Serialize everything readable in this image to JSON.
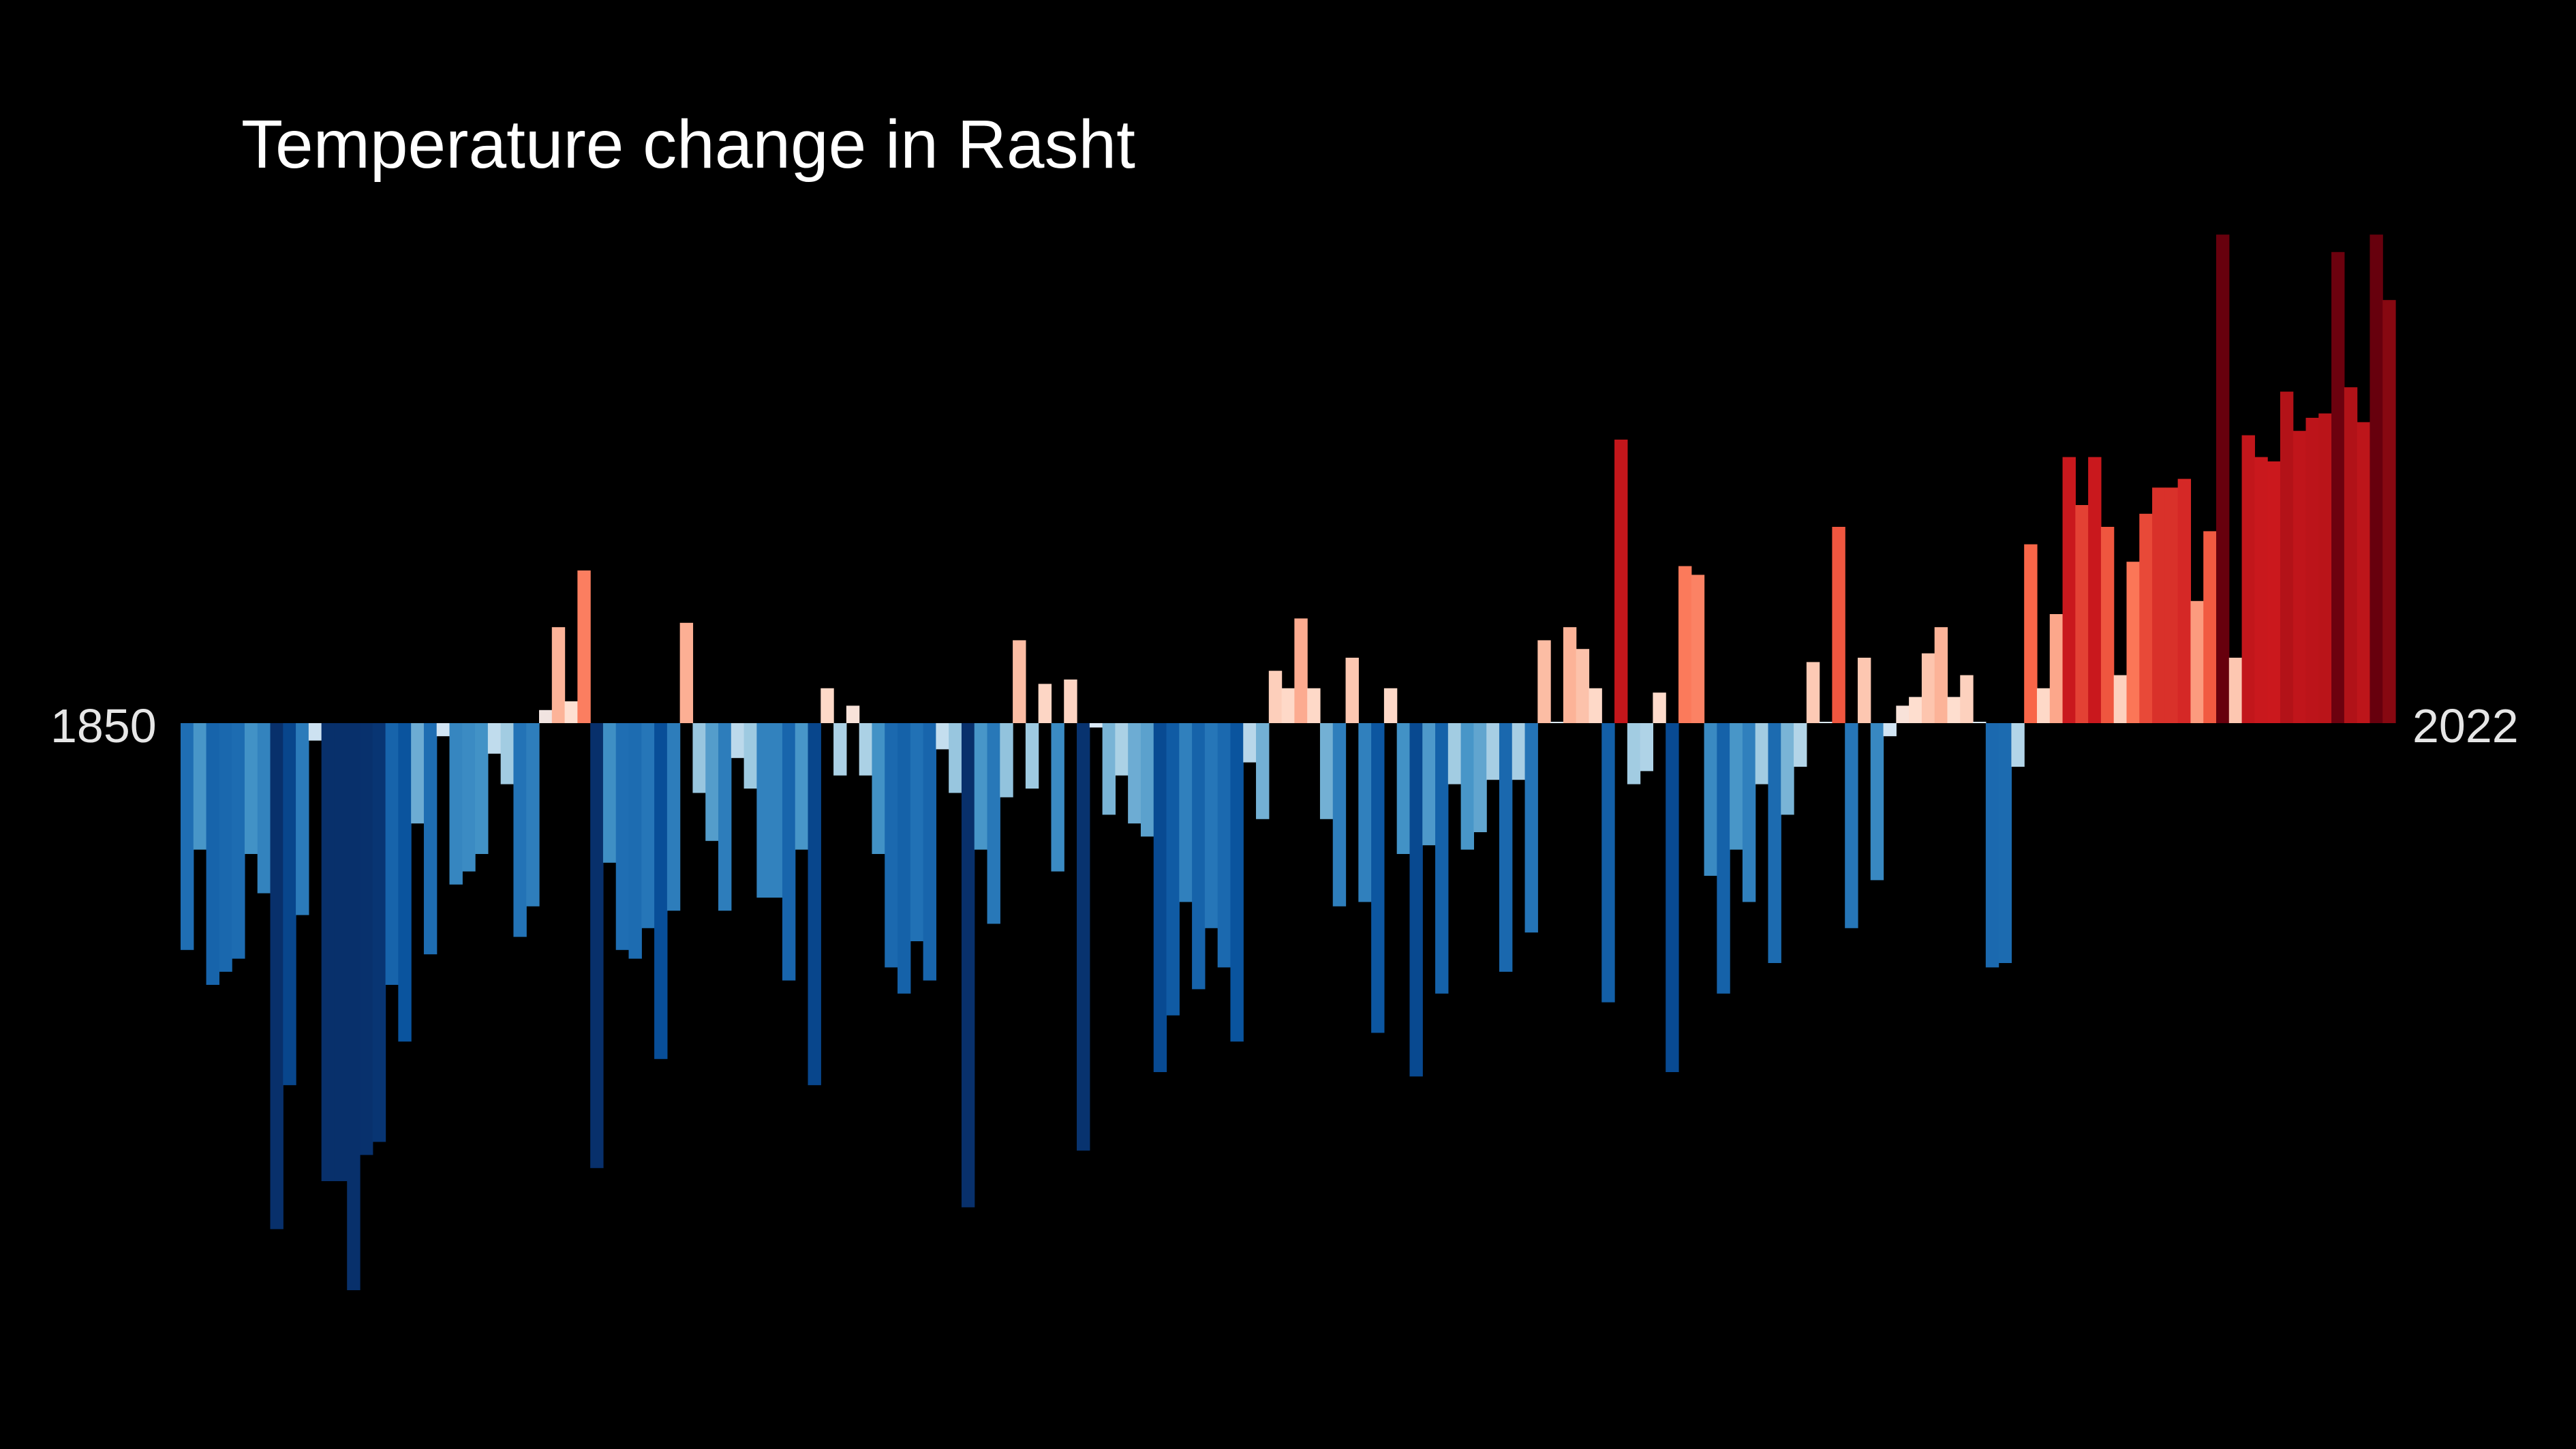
{
  "chart_data": {
    "type": "bar",
    "title": "Temperature change in Rasht",
    "x_start_label": "1850",
    "x_end_label": "2022",
    "ylim": [
      -1.3,
      1.1
    ],
    "colors": {
      "background": "#000000",
      "cold": "#08306b",
      "warm": "#67000d"
    },
    "x": [
      1850,
      1851,
      1852,
      1853,
      1854,
      1855,
      1856,
      1857,
      1858,
      1859,
      1860,
      1861,
      1862,
      1863,
      1864,
      1865,
      1866,
      1867,
      1868,
      1869,
      1870,
      1871,
      1872,
      1873,
      1874,
      1875,
      1876,
      1877,
      1878,
      1879,
      1880,
      1881,
      1882,
      1883,
      1884,
      1885,
      1886,
      1887,
      1888,
      1889,
      1890,
      1891,
      1892,
      1893,
      1894,
      1895,
      1896,
      1897,
      1898,
      1899,
      1900,
      1901,
      1902,
      1903,
      1904,
      1905,
      1906,
      1907,
      1908,
      1909,
      1910,
      1911,
      1912,
      1913,
      1914,
      1915,
      1916,
      1917,
      1918,
      1919,
      1920,
      1921,
      1922,
      1923,
      1924,
      1925,
      1926,
      1927,
      1928,
      1929,
      1930,
      1931,
      1932,
      1933,
      1934,
      1935,
      1936,
      1937,
      1938,
      1939,
      1940,
      1941,
      1942,
      1943,
      1944,
      1945,
      1946,
      1947,
      1948,
      1949,
      1950,
      1951,
      1952,
      1953,
      1954,
      1955,
      1956,
      1957,
      1958,
      1959,
      1960,
      1961,
      1962,
      1963,
      1964,
      1965,
      1966,
      1967,
      1968,
      1969,
      1970,
      1971,
      1972,
      1973,
      1974,
      1975,
      1976,
      1977,
      1978,
      1979,
      1980,
      1981,
      1982,
      1983,
      1984,
      1985,
      1986,
      1987,
      1988,
      1989,
      1990,
      1991,
      1992,
      1993,
      1994,
      1995,
      1996,
      1997,
      1998,
      1999,
      2000,
      2001,
      2002,
      2003,
      2004,
      2005,
      2006,
      2007,
      2008,
      2009,
      2010,
      2011,
      2012,
      2013,
      2014,
      2015,
      2016,
      2017,
      2018,
      2019,
      2020,
      2021,
      2022
    ],
    "values": [
      -0.52,
      -0.29,
      -0.6,
      -0.57,
      -0.54,
      -0.3,
      -0.39,
      -1.16,
      -0.83,
      -0.44,
      -0.04,
      -1.05,
      -1.05,
      -1.3,
      -0.99,
      -0.96,
      -0.6,
      -0.73,
      -0.23,
      -0.53,
      -0.03,
      -0.37,
      -0.34,
      -0.3,
      -0.07,
      -0.14,
      -0.49,
      -0.42,
      0.03,
      0.22,
      0.05,
      0.35,
      -1.02,
      -0.32,
      -0.52,
      -0.54,
      -0.47,
      -0.77,
      -0.43,
      0.23,
      -0.16,
      -0.27,
      -0.43,
      -0.08,
      -0.15,
      -0.4,
      -0.4,
      -0.59,
      -0.29,
      -0.83,
      0.08,
      -0.12,
      0.04,
      -0.12,
      -0.3,
      -0.56,
      -0.62,
      -0.5,
      -0.59,
      -0.06,
      -0.16,
      -1.11,
      -0.29,
      -0.46,
      -0.17,
      0.19,
      -0.15,
      0.09,
      -0.34,
      0.1,
      -0.98,
      -0.01,
      -0.21,
      -0.12,
      -0.23,
      -0.26,
      -0.8,
      -0.67,
      -0.41,
      -0.61,
      -0.47,
      -0.56,
      -0.73,
      -0.09,
      -0.22,
      0.12,
      0.08,
      0.24,
      0.08,
      -0.22,
      -0.42,
      0.15,
      -0.41,
      -0.71,
      0.08,
      -0.3,
      -0.81,
      -0.28,
      -0.62,
      -0.14,
      -0.29,
      -0.25,
      -0.13,
      -0.57,
      -0.13,
      -0.48,
      0.19,
      0.0,
      0.22,
      0.17,
      0.08,
      -0.64,
      0.65,
      -0.14,
      -0.11,
      0.07,
      -0.8,
      0.36,
      0.34,
      -0.35,
      -0.62,
      -0.29,
      -0.41,
      -0.14,
      -0.55,
      -0.21,
      -0.1,
      0.14,
      0.0,
      0.45,
      -0.47,
      0.15,
      -0.36,
      -0.03,
      0.04,
      0.06,
      0.16,
      0.22,
      0.06,
      0.11,
      0.0,
      -0.56,
      -0.55,
      -0.1,
      0.41,
      0.08,
      0.25,
      0.61,
      0.5,
      0.61,
      0.45,
      0.11,
      0.37,
      0.48,
      0.54,
      0.54,
      0.56,
      0.28,
      0.44,
      1.12,
      0.15,
      0.66,
      0.61,
      0.6,
      0.76,
      0.67,
      0.7,
      0.71,
      1.08,
      0.77,
      0.69,
      1.12,
      0.97
    ]
  }
}
